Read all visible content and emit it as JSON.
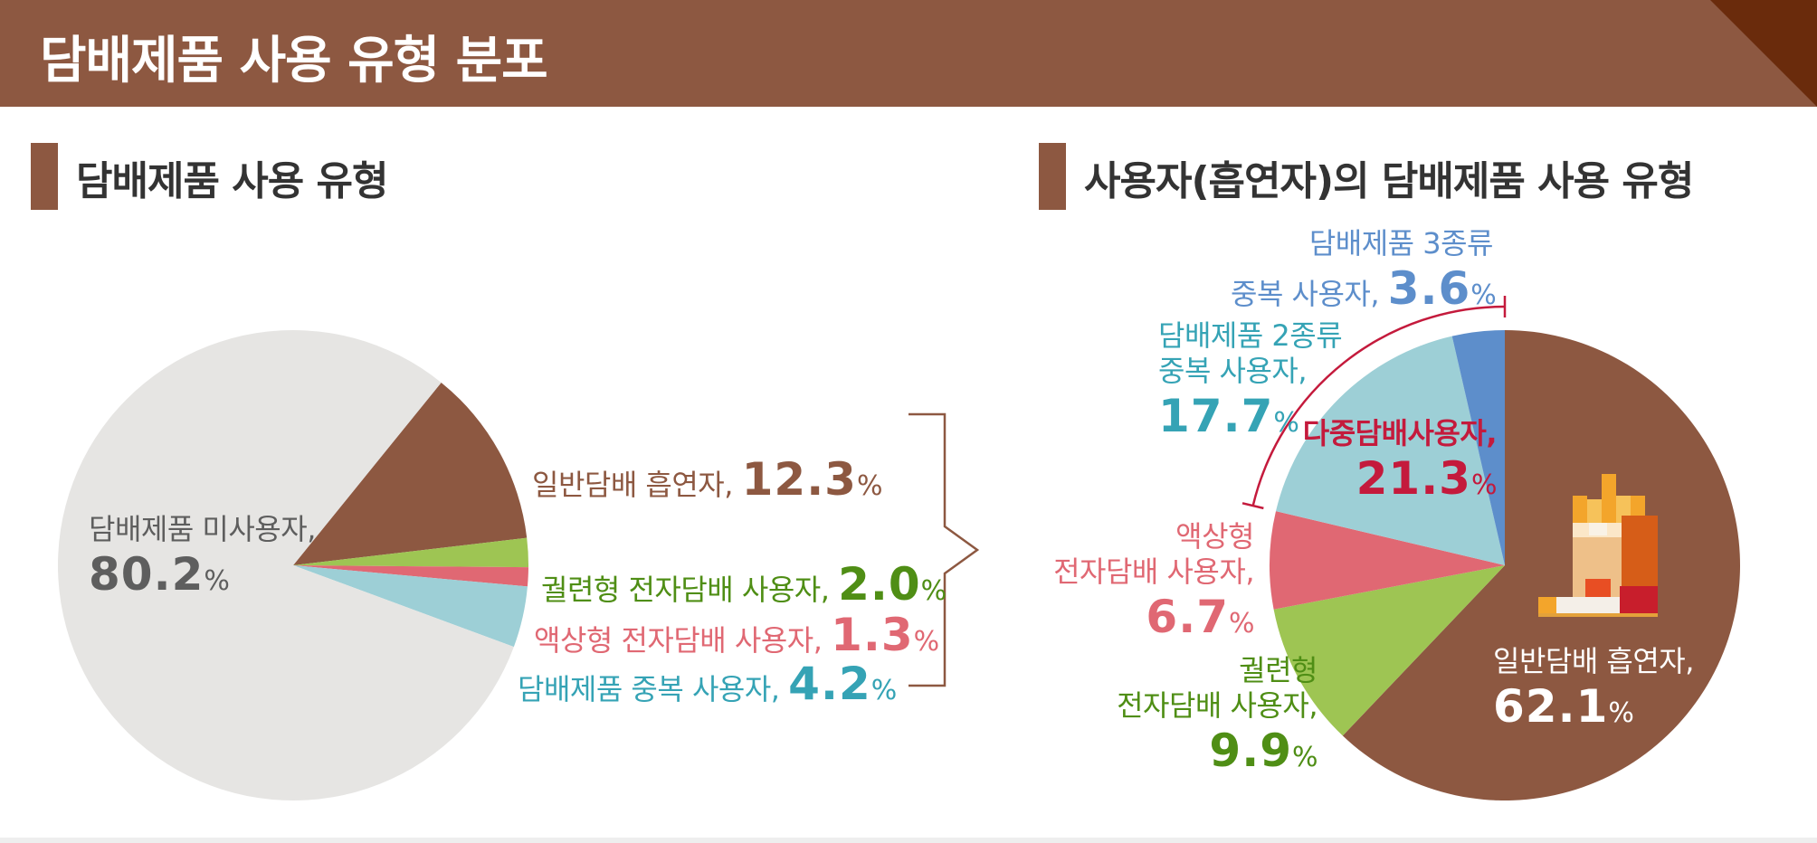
{
  "header": {
    "title": "담배제품 사용 유형 분포"
  },
  "colors": {
    "brown": "#8d5841",
    "green": "#9ec553",
    "pink": "#e06873",
    "lightblue": "#9dcfd6",
    "blue": "#5d8ecb",
    "gray": "#e6e5e3",
    "crimson": "#c41a3c",
    "text_green": "#4f8e15",
    "text_teal": "#35a3b5",
    "text_gray": "#5e5e5e"
  },
  "left_chart": {
    "title": "담배제품 사용 유형",
    "labels": {
      "non_user": {
        "text": "담배제품 미사용자,",
        "value": "80.2",
        "unit": "%"
      },
      "cigarette": {
        "text": "일반담배 흡연자,",
        "value": "12.3",
        "unit": "%"
      },
      "heated": {
        "text": "궐련형 전자담배 사용자,",
        "value": "2.0",
        "unit": "%"
      },
      "liquid": {
        "text": "액상형 전자담배 사용자,",
        "value": "1.3",
        "unit": "%"
      },
      "multi": {
        "text": "담배제품 중복 사용자,",
        "value": "4.2",
        "unit": "%"
      }
    }
  },
  "right_chart": {
    "title": "사용자(흡연자)의 담배제품 사용 유형",
    "labels": {
      "cigarette": {
        "line1": "일반담배 흡연자,",
        "value": "62.1",
        "unit": "%"
      },
      "heated": {
        "line1": "궐련형",
        "line2": "전자담배 사용자,",
        "value": "9.9",
        "unit": "%"
      },
      "liquid": {
        "line1": "액상형",
        "line2": "전자담배 사용자,",
        "value": "6.7",
        "unit": "%"
      },
      "two_kinds": {
        "line1": "담배제품 2종류",
        "line2": "중복 사용자,",
        "value": "17.7",
        "unit": "%"
      },
      "three_kinds": {
        "line1": "담배제품 3종류",
        "line2": "중복 사용자,",
        "value": "3.6",
        "unit": "%"
      },
      "multi_total": {
        "line1": "다중담배사용자,",
        "value": "21.3",
        "unit": "%"
      }
    }
  },
  "chart_data": [
    {
      "type": "pie",
      "title": "담배제품 사용 유형",
      "categories": [
        "담배제품 미사용자",
        "일반담배 흡연자",
        "궐련형 전자담배 사용자",
        "액상형 전자담배 사용자",
        "담배제품 중복 사용자"
      ],
      "values": [
        80.2,
        12.3,
        2.0,
        1.3,
        4.2
      ],
      "colors": [
        "#e6e5e3",
        "#8d5841",
        "#9ec553",
        "#e06873",
        "#9dcfd6"
      ]
    },
    {
      "type": "pie",
      "title": "사용자(흡연자)의 담배제품 사용 유형",
      "categories": [
        "일반담배 흡연자",
        "궐련형 전자담배 사용자",
        "액상형 전자담배 사용자",
        "담배제품 2종류 중복 사용자",
        "담배제품 3종류 중복 사용자"
      ],
      "values": [
        62.1,
        9.9,
        6.7,
        17.7,
        3.6
      ],
      "colors": [
        "#8d5841",
        "#9ec553",
        "#e06873",
        "#9dcfd6",
        "#5d8ecb"
      ],
      "annotations": [
        {
          "text": "다중담배사용자",
          "value": 21.3,
          "spans": [
            "담배제품 2종류 중복 사용자",
            "담배제품 3종류 중복 사용자"
          ]
        }
      ]
    }
  ]
}
